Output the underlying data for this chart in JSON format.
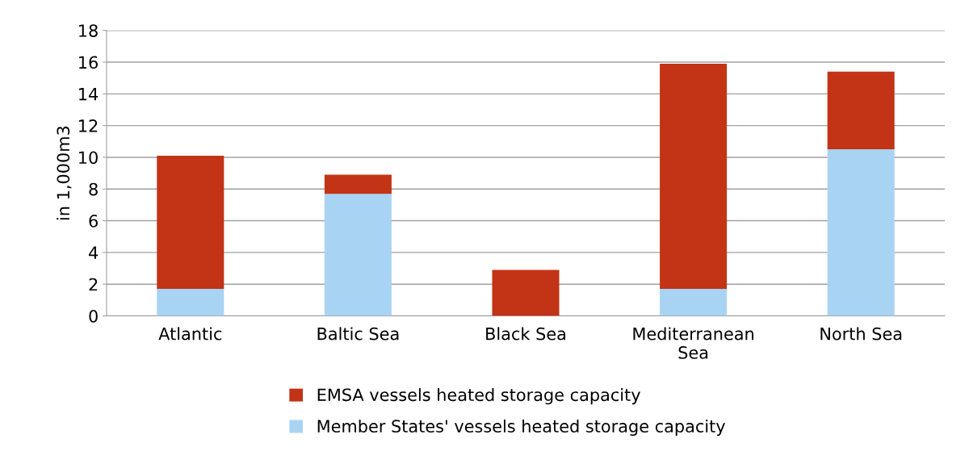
{
  "chart_data": {
    "type": "bar",
    "stacked": true,
    "ylabel": "in 1,000m3",
    "categories": [
      "Atlantic",
      "Baltic Sea",
      "Black Sea",
      "Mediterranean\nSea",
      "North Sea"
    ],
    "series": [
      {
        "name": "Member States' vessels heated storage capacity",
        "color": "#a9d3f3",
        "values": [
          1.7,
          7.7,
          0,
          1.7,
          10.5
        ]
      },
      {
        "name": "EMSA vessels heated storage capacity",
        "color": "#c33316",
        "values": [
          8.4,
          1.2,
          2.9,
          14.2,
          4.9
        ]
      }
    ],
    "ylim": [
      0,
      18
    ],
    "yticks": [
      0,
      2,
      4,
      6,
      8,
      10,
      12,
      14,
      16,
      18
    ],
    "grid": "y",
    "legend": "bottom"
  }
}
